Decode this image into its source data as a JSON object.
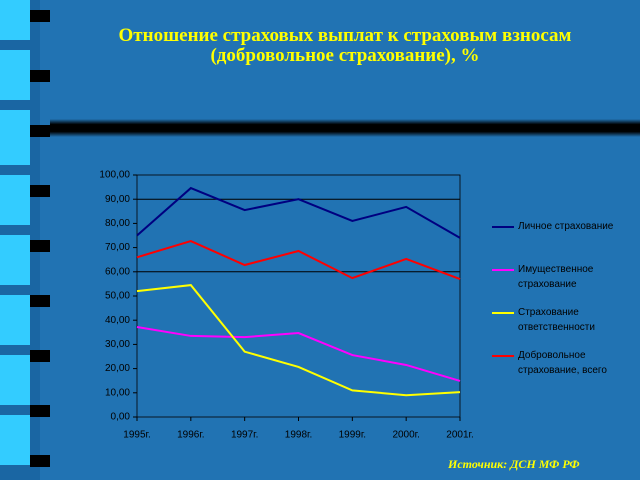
{
  "chart_data": {
    "type": "line",
    "title": "Отношение страховых выплат к страховым взносам",
    "subtitle": "(добровольное страхование), %",
    "source": "Источник:  ДСН МФ РФ",
    "categories": [
      "1995г.",
      "1996г.",
      "1997г.",
      "1998г.",
      "1999г.",
      "2000г.",
      "2001г."
    ],
    "series": [
      {
        "name": "Личное страхование",
        "color": "#000080",
        "values": [
          75,
          94.6,
          85.5,
          90,
          81,
          86.8,
          74
        ]
      },
      {
        "name": "Имущественное страхование",
        "color": "#ff00ff",
        "values": [
          37.2,
          33.5,
          33,
          34.7,
          25.6,
          21.5,
          14.9
        ]
      },
      {
        "name": "Страхование ответственности",
        "color": "#ffff00",
        "values": [
          52,
          54.5,
          27,
          20.7,
          11,
          9,
          10.3
        ]
      },
      {
        "name": "Добровольное страхование, всего",
        "color": "#ff0000",
        "values": [
          66,
          72.7,
          62.8,
          68.6,
          57.4,
          65.3,
          57
        ]
      }
    ],
    "ylim": [
      0,
      100
    ],
    "yticks": [
      {
        "value": 0,
        "label": "0,00"
      },
      {
        "value": 10,
        "label": "10,00"
      },
      {
        "value": 20,
        "label": "20,00"
      },
      {
        "value": 30,
        "label": "30,00"
      },
      {
        "value": 40,
        "label": "40,00"
      },
      {
        "value": 50,
        "label": "50,00"
      },
      {
        "value": 60,
        "label": "60,00"
      },
      {
        "value": 70,
        "label": "70,00"
      },
      {
        "value": 80,
        "label": "80,00"
      },
      {
        "value": 90,
        "label": "90,00"
      },
      {
        "value": 100,
        "label": "100,00"
      }
    ],
    "grid_lines": [
      90,
      60
    ]
  }
}
